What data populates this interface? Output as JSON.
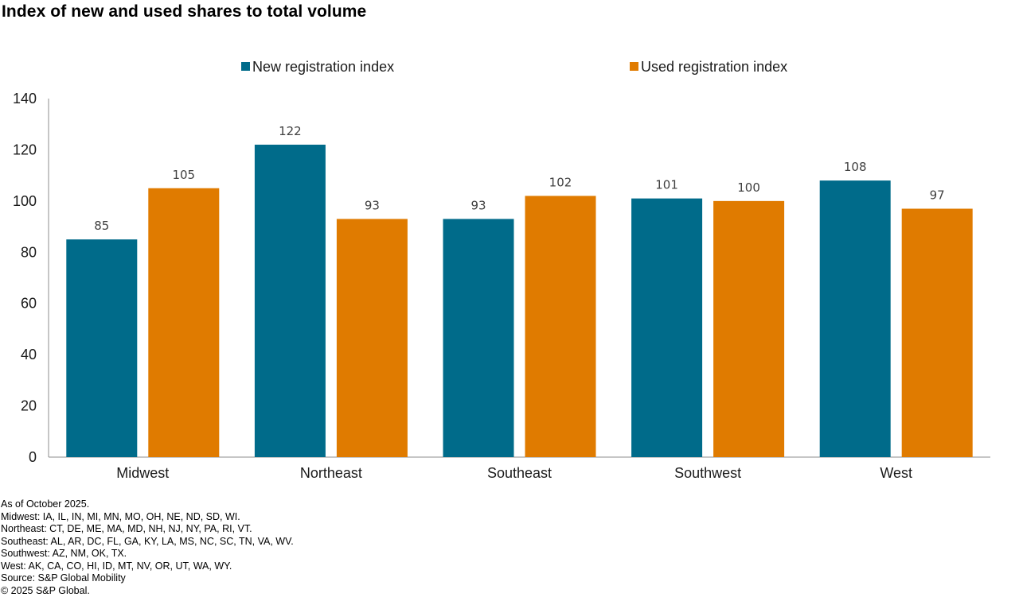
{
  "title": "Index of new and used shares to total volume",
  "chart_data": {
    "type": "bar",
    "categories": [
      "Midwest",
      "Northeast",
      "Southeast",
      "Southwest",
      "West"
    ],
    "series": [
      {
        "name": "New registration index",
        "color": "#006b8a",
        "values": [
          85,
          122,
          93,
          101,
          108
        ]
      },
      {
        "name": "Used registration index",
        "color": "#e07b00",
        "values": [
          105,
          93,
          102,
          100,
          97
        ]
      }
    ],
    "ylim": [
      0,
      140
    ],
    "yticks": [
      0,
      20,
      40,
      60,
      80,
      100,
      120,
      140
    ],
    "xlabel": "",
    "ylabel": "",
    "grid": false,
    "legend": "top-center"
  },
  "notes": {
    "as_of": "As of October 2025.",
    "midwest": "Midwest: IA, IL, IN, MI, MN, MO, OH, NE, ND, SD, WI.",
    "northeast": "Northeast: CT, DE, ME, MA, MD, NH, NJ, NY, PA, RI, VT.",
    "southeast": "Southeast: AL, AR, DC, FL, GA, KY, LA, MS, NC, SC, TN, VA, WV.",
    "southwest": "Southwest: AZ, NM, OK, TX.",
    "west": "West: AK, CA, CO, HI, ID, MT, NV, OR, UT, WA, WY.",
    "source": "Source: S&P Global Mobility",
    "copyright": "© 2025 S&P Global."
  }
}
